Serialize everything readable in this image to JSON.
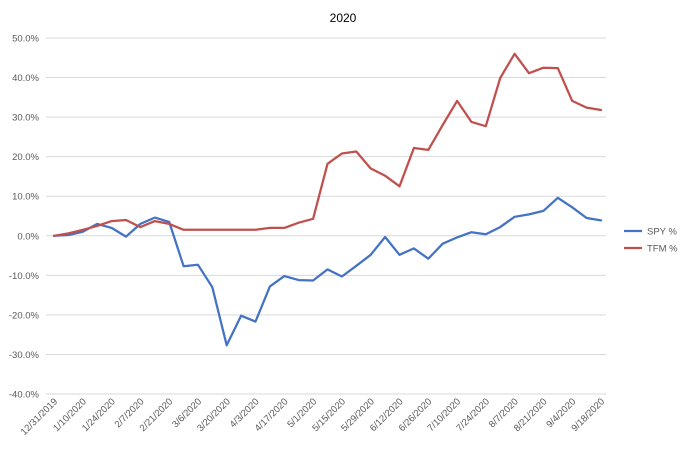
{
  "chart_data": {
    "type": "line",
    "title": "2020",
    "xlabel": "",
    "ylabel": "",
    "ylim": [
      -0.4,
      0.5
    ],
    "y_ticks": [
      "50.0%",
      "40.0%",
      "30.0%",
      "20.0%",
      "10.0%",
      "0.0%",
      "-10.0%",
      "-20.0%",
      "-30.0%",
      "-40.0%"
    ],
    "x_tick_labels": [
      "12/31/2019",
      "1/10/2020",
      "1/24/2020",
      "2/7/2020",
      "2/21/2020",
      "3/6/2020",
      "3/20/2020",
      "4/3/2020",
      "4/17/2020",
      "5/1/2020",
      "5/15/2020",
      "5/29/2020",
      "6/12/2020",
      "6/26/2020",
      "7/10/2020",
      "7/24/2020",
      "8/7/2020",
      "8/21/2020",
      "9/4/2020",
      "9/18/2020"
    ],
    "grid": true,
    "legend_position": "right",
    "series": [
      {
        "name": "SPY %",
        "color": "#4472C4",
        "values": [
          0.0,
          0.002,
          0.01,
          0.03,
          0.02,
          -0.002,
          0.03,
          0.046,
          0.035,
          -0.077,
          -0.073,
          -0.13,
          -0.277,
          -0.202,
          -0.217,
          -0.128,
          -0.102,
          -0.112,
          -0.113,
          -0.085,
          -0.103,
          -0.076,
          -0.048,
          -0.003,
          -0.048,
          -0.032,
          -0.058,
          -0.02,
          -0.004,
          0.009,
          0.004,
          0.022,
          0.048,
          0.054,
          0.063,
          0.096,
          0.072,
          0.045,
          0.039
        ]
      },
      {
        "name": "TFM %",
        "color": "#C0504D",
        "values": [
          0.0,
          0.006,
          0.015,
          0.025,
          0.037,
          0.04,
          0.022,
          0.037,
          0.03,
          0.015,
          0.015,
          0.015,
          0.015,
          0.015,
          0.015,
          0.02,
          0.02,
          0.033,
          0.043,
          0.182,
          0.208,
          0.213,
          0.17,
          0.152,
          0.125,
          0.222,
          0.217,
          0.28,
          0.341,
          0.288,
          0.277,
          0.399,
          0.46,
          0.411,
          0.425,
          0.424,
          0.341,
          0.324,
          0.318
        ]
      }
    ]
  }
}
